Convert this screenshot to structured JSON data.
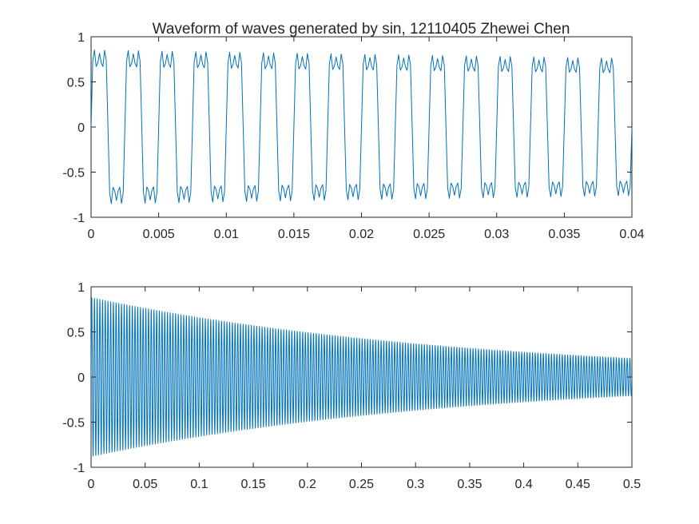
{
  "title": "Waveform of waves generated by sin, 12110405 Zhewei Chen",
  "colors": {
    "series": "#0072bd",
    "axis": "#262626",
    "background": "#ffffff"
  },
  "chart_data": [
    {
      "type": "line",
      "title": "Waveform of waves generated by sin, 12110405 Zhewei Chen",
      "xlim": [
        0,
        0.04
      ],
      "ylim": [
        -1,
        1
      ],
      "xticks": [
        0,
        0.005,
        0.01,
        0.015,
        0.02,
        0.025,
        0.03,
        0.035,
        0.04
      ],
      "xtick_labels": [
        "0",
        "0.005",
        "0.01",
        "0.015",
        "0.02",
        "0.025",
        "0.03",
        "0.035",
        "0.04"
      ],
      "yticks": [
        -1,
        -0.5,
        0,
        0.5,
        1
      ],
      "ytick_labels": [
        "-1",
        "-0.5",
        "0",
        "0.5",
        "1"
      ],
      "grid": false,
      "legend": "none",
      "signal": {
        "fundamental_hz": 400,
        "amplitude_start": 0.88,
        "decay_rate_per_s": 2.9,
        "harmonics": [
          {
            "order": 1,
            "relative_amplitude": 1.0
          },
          {
            "order": 3,
            "relative_amplitude": 0.333
          },
          {
            "order": 5,
            "relative_amplitude": 0.2
          }
        ],
        "sample_rate_hz": 8000
      },
      "series": [
        {
          "color": "#0072bd"
        }
      ]
    },
    {
      "type": "line",
      "title": "",
      "xlim": [
        0,
        0.5
      ],
      "ylim": [
        -1,
        1
      ],
      "xticks": [
        0,
        0.05,
        0.1,
        0.15,
        0.2,
        0.25,
        0.3,
        0.35,
        0.4,
        0.45,
        0.5
      ],
      "xtick_labels": [
        "0",
        "0.05",
        "0.1",
        "0.15",
        "0.2",
        "0.25",
        "0.3",
        "0.35",
        "0.4",
        "0.45",
        "0.5"
      ],
      "yticks": [
        -1,
        -0.5,
        0,
        0.5,
        1
      ],
      "ytick_labels": [
        "-1",
        "-0.5",
        "0",
        "0.5",
        "1"
      ],
      "grid": false,
      "legend": "none",
      "signal": {
        "fundamental_hz": 400,
        "amplitude_start": 0.88,
        "amplitude_end": 0.2,
        "decay_rate_per_s": 2.9,
        "sample_rate_hz": 8000
      },
      "series": [
        {
          "color": "#0072bd"
        }
      ]
    }
  ]
}
